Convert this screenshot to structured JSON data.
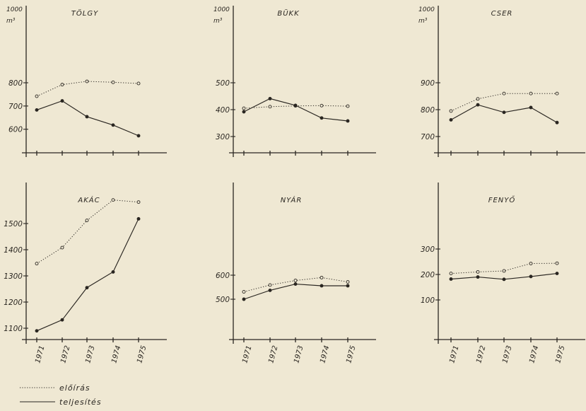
{
  "colors": {
    "background": "#efe8d3",
    "ink": "#2a2621"
  },
  "legend": {
    "dotted": "előírás",
    "solid": "teljesítés"
  },
  "unit": {
    "top": "1000",
    "bottom": "m³"
  },
  "chart_data": [
    {
      "type": "line",
      "title": "TÖLGY",
      "unit_label": true,
      "x": [
        "1971",
        "1972",
        "1973",
        "1974",
        "1975"
      ],
      "ytick_labels": [
        "600",
        "700",
        "800"
      ],
      "ytick_values": [
        600,
        700,
        800
      ],
      "ylim": [
        520,
        1000
      ],
      "series": [
        {
          "name": "előírás",
          "style": "dotted",
          "values": [
            742,
            792,
            806,
            802,
            797
          ]
        },
        {
          "name": "teljesítés",
          "style": "solid",
          "values": [
            683,
            722,
            654,
            618,
            572
          ]
        }
      ]
    },
    {
      "type": "line",
      "title": "BÜKK",
      "unit_label": true,
      "x": [
        "1971",
        "1972",
        "1973",
        "1974",
        "1975"
      ],
      "ytick_labels": [
        "300",
        "400",
        "500"
      ],
      "ytick_values": [
        300,
        400,
        500
      ],
      "ylim": [
        240,
        1000
      ],
      "series": [
        {
          "name": "előírás",
          "style": "dotted",
          "values": [
            405,
            411,
            414,
            415,
            413
          ]
        },
        {
          "name": "teljesítés",
          "style": "solid",
          "values": [
            392,
            441,
            416,
            369,
            358
          ]
        }
      ]
    },
    {
      "type": "line",
      "title": "CSER",
      "unit_label": true,
      "x": [
        "1971",
        "1972",
        "1973",
        "1974",
        "1975"
      ],
      "ytick_labels": [
        "700",
        "800",
        "900"
      ],
      "ytick_values": [
        700,
        800,
        900
      ],
      "ylim": [
        640,
        1000
      ],
      "series": [
        {
          "name": "előírás",
          "style": "dotted",
          "values": [
            795,
            840,
            860,
            860,
            860
          ]
        },
        {
          "name": "teljesítés",
          "style": "solid",
          "values": [
            762,
            818,
            790,
            808,
            752
          ]
        }
      ]
    },
    {
      "type": "line",
      "title": "AKÁC",
      "unit_label": false,
      "x": [
        "1971",
        "1972",
        "1973",
        "1974",
        "1975"
      ],
      "ytick_labels": [
        "1100",
        "1200",
        "1300",
        "1400",
        "1500"
      ],
      "ytick_values": [
        1100,
        1200,
        1300,
        1400,
        1500
      ],
      "ylim": [
        1040,
        1640
      ],
      "series": [
        {
          "name": "előírás",
          "style": "dotted",
          "values": [
            1347,
            1408,
            1512,
            1590,
            1582
          ]
        },
        {
          "name": "teljesítés",
          "style": "solid",
          "values": [
            1090,
            1132,
            1255,
            1315,
            1518
          ]
        }
      ]
    },
    {
      "type": "line",
      "title": "NYÁR",
      "unit_label": false,
      "x": [
        "1971",
        "1972",
        "1973",
        "1974",
        "1975"
      ],
      "ytick_labels": [
        "500",
        "600"
      ],
      "ytick_values": [
        500,
        600
      ],
      "ylim": [
        400,
        900
      ],
      "series": [
        {
          "name": "előírás",
          "style": "dotted",
          "values": [
            531,
            559,
            578,
            590,
            572
          ]
        },
        {
          "name": "teljesítés",
          "style": "solid",
          "values": [
            500,
            537,
            563,
            556,
            556
          ]
        }
      ]
    },
    {
      "type": "line",
      "title": "FENYŐ",
      "unit_label": false,
      "x": [
        "1971",
        "1972",
        "1973",
        "1974",
        "1975"
      ],
      "ytick_labels": [
        "100",
        "200",
        "300"
      ],
      "ytick_values": [
        100,
        200,
        300
      ],
      "ylim": [
        0,
        440
      ],
      "series": [
        {
          "name": "előírás",
          "style": "dotted",
          "values": [
            204,
            210,
            214,
            243,
            244
          ]
        },
        {
          "name": "teljesítés",
          "style": "solid",
          "values": [
            182,
            190,
            181,
            192,
            204
          ]
        }
      ]
    }
  ]
}
